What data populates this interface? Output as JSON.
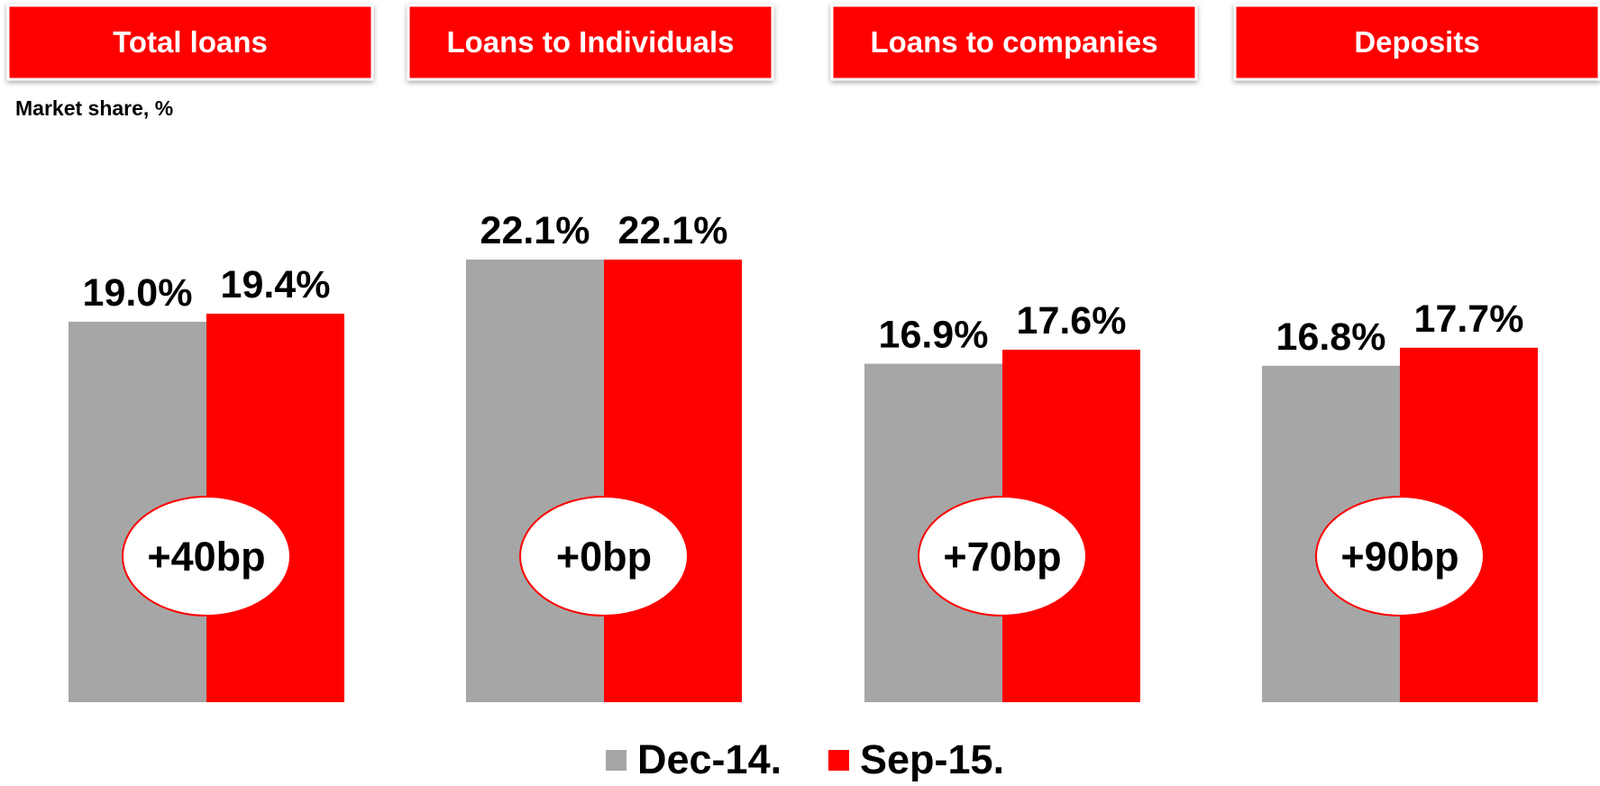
{
  "chart_data": {
    "type": "bar",
    "subtitle": "Market share, %",
    "categories": [
      "Total loans",
      "Loans to Individuals",
      "Loans to companies",
      "Deposits"
    ],
    "series": [
      {
        "name": "Dec-14.",
        "color": "#a6a6a6",
        "values": [
          19.0,
          22.1,
          16.9,
          16.8
        ],
        "value_labels": [
          "19.0%",
          "22.1%",
          "16.9%",
          "16.8%"
        ]
      },
      {
        "name": "Sep-15.",
        "color": "#ff0000",
        "values": [
          19.4,
          22.1,
          17.6,
          17.7
        ],
        "value_labels": [
          "19.4%",
          "22.1%",
          "17.6%",
          "17.7%"
        ]
      }
    ],
    "annotations": [
      "+40bp",
      "+0bp",
      "+70bp",
      "+90bp"
    ]
  }
}
